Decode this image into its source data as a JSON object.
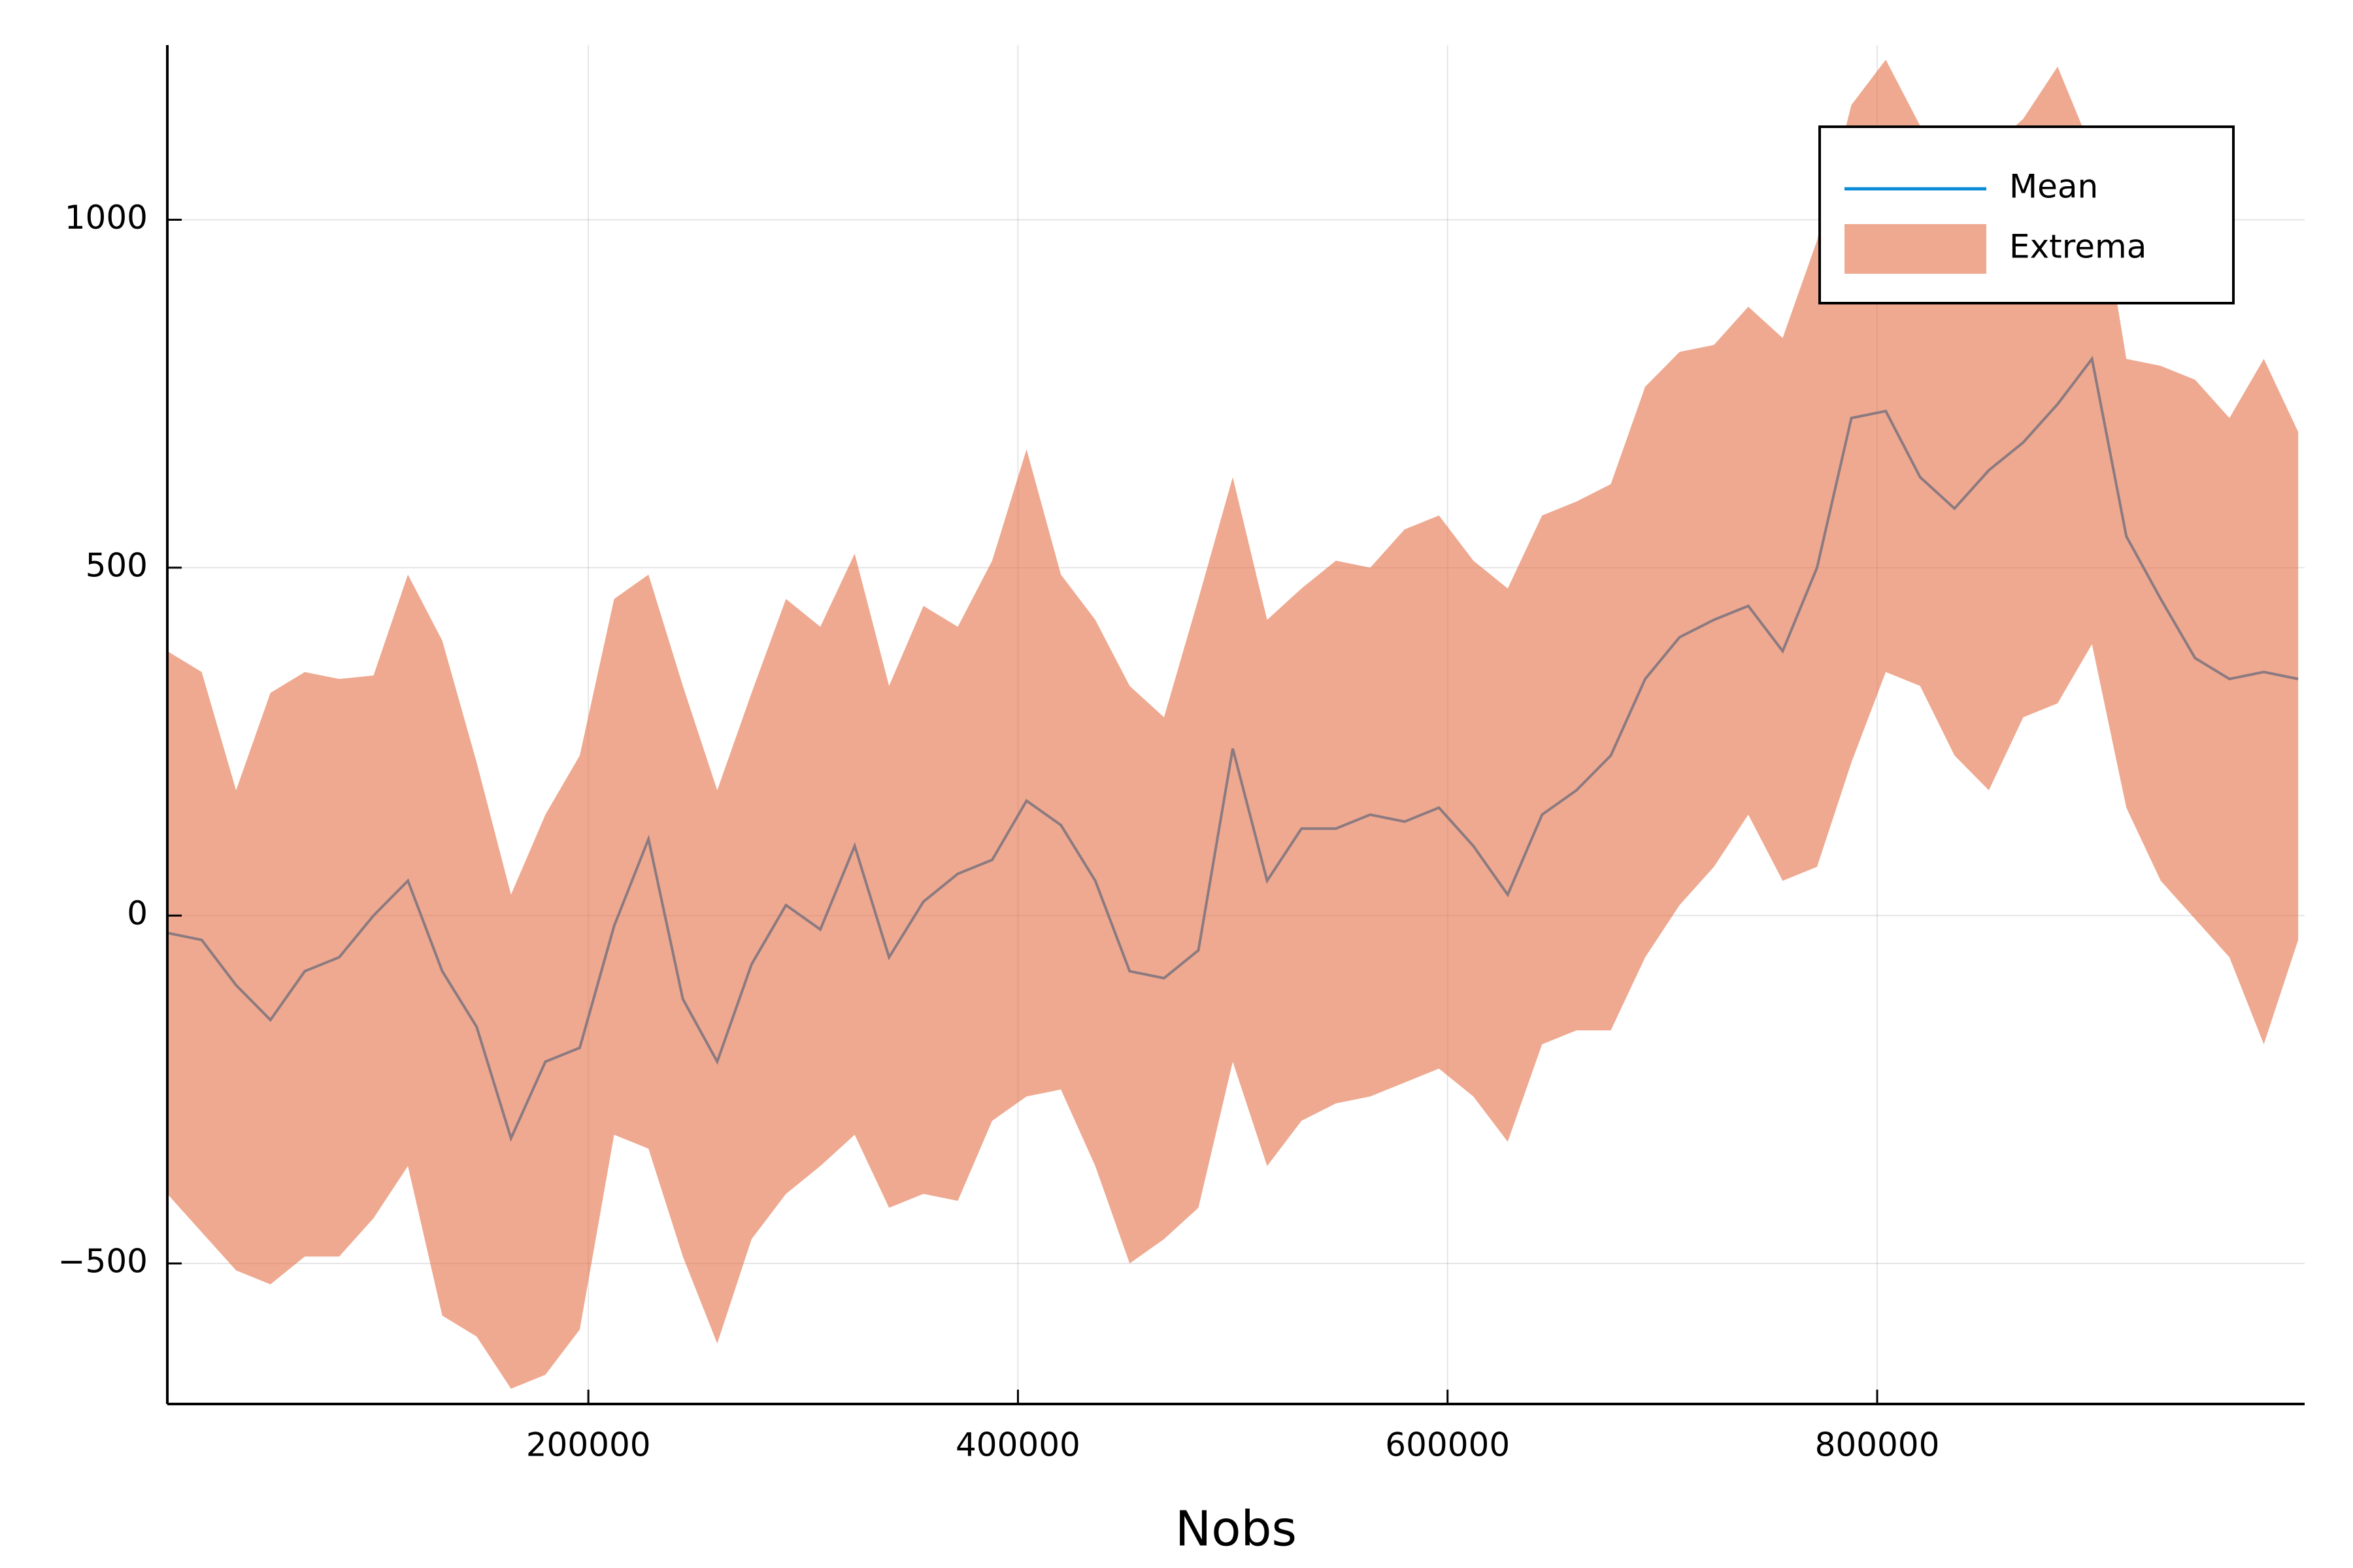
{
  "chart_data": {
    "type": "line",
    "x_label": "Nobs",
    "x": [
      4000,
      20000,
      36000,
      52000,
      68000,
      84000,
      100000,
      116000,
      132000,
      148000,
      164000,
      180000,
      196000,
      212000,
      228000,
      244000,
      260000,
      276000,
      292000,
      308000,
      324000,
      340000,
      356000,
      372000,
      388000,
      404000,
      420000,
      436000,
      452000,
      468000,
      484000,
      500000,
      516000,
      532000,
      548000,
      564000,
      580000,
      596000,
      612000,
      628000,
      644000,
      660000,
      676000,
      692000,
      708000,
      724000,
      740000,
      756000,
      772000,
      788000,
      804000,
      820000,
      836000,
      852000,
      868000,
      884000,
      900000,
      916000,
      932000,
      948000,
      964000,
      980000,
      996000
    ],
    "series": [
      {
        "name": "Mean",
        "color": "#0a8bd8",
        "values": [
          -25,
          -35,
          -100,
          -150,
          -80,
          -60,
          0,
          50,
          -80,
          -160,
          -320,
          -210,
          -190,
          -15,
          110,
          -120,
          -210,
          -70,
          15,
          -20,
          100,
          -60,
          20,
          60,
          80,
          165,
          130,
          50,
          -80,
          -90,
          -50,
          240,
          50,
          125,
          125,
          145,
          135,
          155,
          100,
          30,
          145,
          180,
          230,
          340,
          400,
          425,
          445,
          380,
          500,
          715,
          725,
          630,
          585,
          640,
          680,
          735,
          800,
          545,
          455,
          370,
          340,
          350,
          340
        ]
      },
      {
        "name": "Extrema",
        "color": "#e26f46",
        "alpha": 0.6,
        "lower": [
          -400,
          -455,
          -510,
          -530,
          -490,
          -490,
          -435,
          -360,
          -575,
          -605,
          -680,
          -660,
          -595,
          -315,
          -335,
          -490,
          -615,
          -465,
          -400,
          -360,
          -315,
          -420,
          -400,
          -410,
          -295,
          -260,
          -250,
          -360,
          -500,
          -465,
          -420,
          -210,
          -360,
          -295,
          -270,
          -260,
          -240,
          -220,
          -260,
          -325,
          -185,
          -165,
          -165,
          -60,
          15,
          70,
          145,
          50,
          70,
          220,
          350,
          330,
          230,
          180,
          285,
          305,
          390,
          155,
          50,
          -5,
          -60,
          -185,
          -35
        ],
        "upper": [
          380,
          350,
          180,
          320,
          350,
          340,
          345,
          490,
          395,
          220,
          30,
          145,
          230,
          455,
          490,
          330,
          180,
          320,
          455,
          415,
          520,
          330,
          445,
          415,
          510,
          670,
          490,
          425,
          330,
          285,
          455,
          630,
          425,
          470,
          510,
          500,
          555,
          575,
          510,
          470,
          575,
          595,
          620,
          760,
          810,
          820,
          875,
          830,
          970,
          1165,
          1230,
          1135,
          1060,
          1100,
          1145,
          1220,
          1100,
          800,
          790,
          770,
          715,
          800,
          695
        ]
      }
    ],
    "xlim": [
      4000,
      999000
    ],
    "ylim": [
      -702,
      1251
    ],
    "xticks": [
      200000,
      400000,
      600000,
      800000
    ],
    "yticks": [
      {
        "value": -500,
        "label": "−500"
      },
      0,
      500,
      1000
    ],
    "grid": true,
    "legend": "top-right"
  }
}
